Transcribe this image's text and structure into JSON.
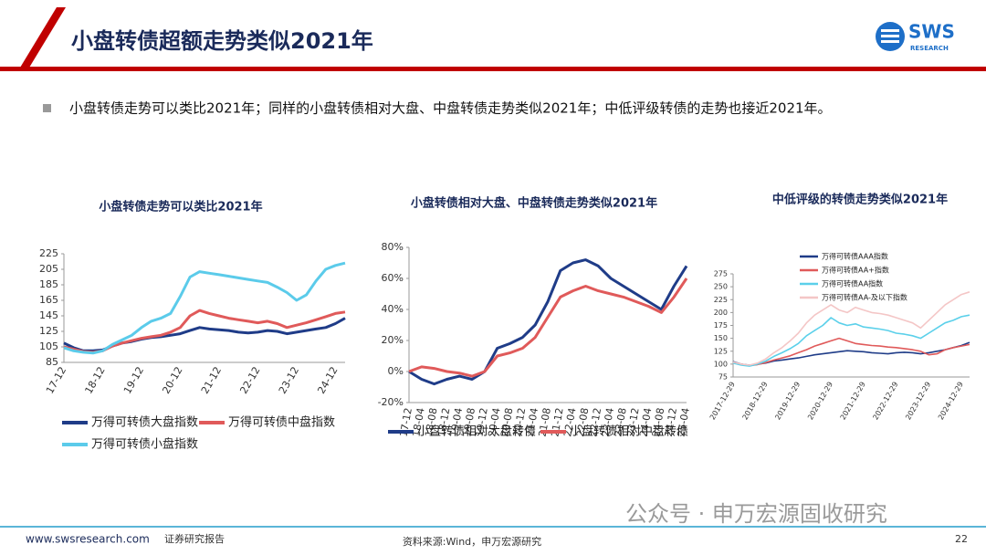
{
  "header": {
    "title": "小盘转债超额走势类似2021年",
    "logo": "SWS",
    "logo_sub": "RESEARCH"
  },
  "bullet": "小盘转债走势可以类比2021年；同样的小盘转债相对大盘、中盘转债走势类似2021年；中低评级转债的走势也接近2021年。",
  "watermark": "公众号 · 申万宏源固收研究",
  "footer": {
    "website": "www.swsresearch.com",
    "label": "证券研究报告",
    "source": "资料来源:Wind，申万宏源研究",
    "page": "22"
  },
  "chart_data": [
    {
      "type": "line",
      "title": "小盘转债走势可以类比2021年",
      "categories": [
        "17-12",
        null,
        null,
        null,
        "18-12",
        null,
        null,
        null,
        "19-12",
        null,
        null,
        null,
        "20-12",
        null,
        null,
        null,
        "21-12",
        null,
        null,
        null,
        "22-12",
        null,
        null,
        null,
        "23-12",
        null,
        null,
        null,
        "24-12",
        null
      ],
      "ylim": [
        85,
        225
      ],
      "yticks": [
        85,
        105,
        125,
        145,
        165,
        185,
        205,
        225
      ],
      "series": [
        {
          "name": "万得可转债大盘指数",
          "color": "#1f3c88",
          "values": [
            110,
            104,
            100,
            100,
            101,
            106,
            110,
            112,
            115,
            117,
            118,
            120,
            122,
            126,
            130,
            128,
            127,
            126,
            124,
            123,
            124,
            126,
            125,
            122,
            124,
            126,
            128,
            130,
            135,
            142
          ]
        },
        {
          "name": "万得可转债中盘指数",
          "color": "#e05a5a",
          "values": [
            105,
            102,
            99,
            98,
            100,
            106,
            110,
            113,
            116,
            118,
            120,
            124,
            130,
            145,
            152,
            148,
            145,
            142,
            140,
            138,
            136,
            138,
            135,
            130,
            133,
            136,
            140,
            144,
            148,
            150
          ]
        },
        {
          "name": "万得可转债小盘指数",
          "color": "#5bcbea",
          "values": [
            104,
            100,
            98,
            97,
            100,
            108,
            114,
            120,
            130,
            138,
            142,
            148,
            170,
            195,
            202,
            200,
            198,
            196,
            194,
            192,
            190,
            188,
            182,
            175,
            165,
            172,
            190,
            205,
            210,
            213
          ]
        }
      ]
    },
    {
      "type": "line",
      "title": "小盘转债相对大盘、中盘转债走势类似2021年",
      "categories": [
        "17-12",
        "18-04",
        "18-08",
        "18-12",
        "19-04",
        "19-08",
        "19-12",
        "20-04",
        "20-08",
        "20-12",
        "21-04",
        "21-08",
        "21-12",
        "22-04",
        "22-08",
        "22-12",
        "23-04",
        "23-08",
        "23-12",
        "24-04",
        "24-08",
        "24-12",
        "25-04"
      ],
      "ylim": [
        -20,
        80
      ],
      "yticks": [
        {
          "value": -20,
          "label": "-20%"
        },
        {
          "value": 0,
          "label": "0%"
        },
        {
          "value": 20,
          "label": "20%"
        },
        {
          "value": 40,
          "label": "40%"
        },
        {
          "value": 60,
          "label": "60%"
        },
        {
          "value": 80,
          "label": "80%"
        }
      ],
      "series": [
        {
          "name": "小盘转债相对大盘转债",
          "color": "#1f3c88",
          "values": [
            0,
            -5,
            -8,
            -5,
            -3,
            -5,
            0,
            15,
            18,
            22,
            30,
            45,
            65,
            70,
            72,
            68,
            60,
            55,
            50,
            45,
            40,
            55,
            68
          ]
        },
        {
          "name": "小盘转债相对中盘转债",
          "color": "#e05a5a",
          "values": [
            0,
            3,
            2,
            0,
            -1,
            -3,
            0,
            10,
            12,
            15,
            22,
            35,
            48,
            52,
            55,
            52,
            50,
            48,
            45,
            42,
            38,
            48,
            60
          ]
        }
      ]
    },
    {
      "type": "line",
      "title": "中低评级的转债走势类似2021年",
      "categories": [
        "2017-12-29",
        null,
        null,
        null,
        "2018-12-29",
        null,
        null,
        null,
        "2019-12-29",
        null,
        null,
        null,
        "2020-12-29",
        null,
        null,
        null,
        "2021-12-29",
        null,
        null,
        null,
        "2022-12-29",
        null,
        null,
        null,
        "2023-12-29",
        null,
        null,
        null,
        "2024-12-29",
        null
      ],
      "ylim": [
        75,
        275
      ],
      "yticks": [
        75,
        100,
        125,
        150,
        175,
        200,
        225,
        250,
        275
      ],
      "series": [
        {
          "name": "万得可转债AAA指数",
          "color": "#1f3c88",
          "values": [
            105,
            100,
            98,
            100,
            102,
            106,
            108,
            110,
            112,
            115,
            118,
            120,
            122,
            124,
            126,
            125,
            124,
            122,
            121,
            120,
            122,
            123,
            122,
            120,
            122,
            125,
            128,
            132,
            136,
            142
          ]
        },
        {
          "name": "万得可转债AA+指数",
          "color": "#e05a5a",
          "values": [
            103,
            100,
            97,
            99,
            103,
            108,
            112,
            116,
            122,
            128,
            135,
            140,
            145,
            150,
            145,
            140,
            138,
            136,
            135,
            133,
            132,
            130,
            128,
            125,
            118,
            120,
            128,
            132,
            135,
            138
          ]
        },
        {
          "name": "万得可转债AA指数",
          "color": "#5bd0ea",
          "values": [
            102,
            98,
            96,
            100,
            106,
            115,
            122,
            130,
            140,
            155,
            165,
            175,
            190,
            180,
            175,
            178,
            172,
            170,
            168,
            165,
            160,
            158,
            155,
            150,
            160,
            170,
            180,
            185,
            192,
            195
          ]
        },
        {
          "name": "万得可转债AA-及以下指数",
          "color": "#f4c6c6",
          "values": [
            104,
            100,
            98,
            102,
            110,
            122,
            132,
            145,
            160,
            180,
            195,
            205,
            215,
            205,
            200,
            210,
            205,
            200,
            198,
            195,
            190,
            185,
            180,
            170,
            185,
            200,
            215,
            225,
            235,
            240
          ]
        }
      ]
    }
  ]
}
